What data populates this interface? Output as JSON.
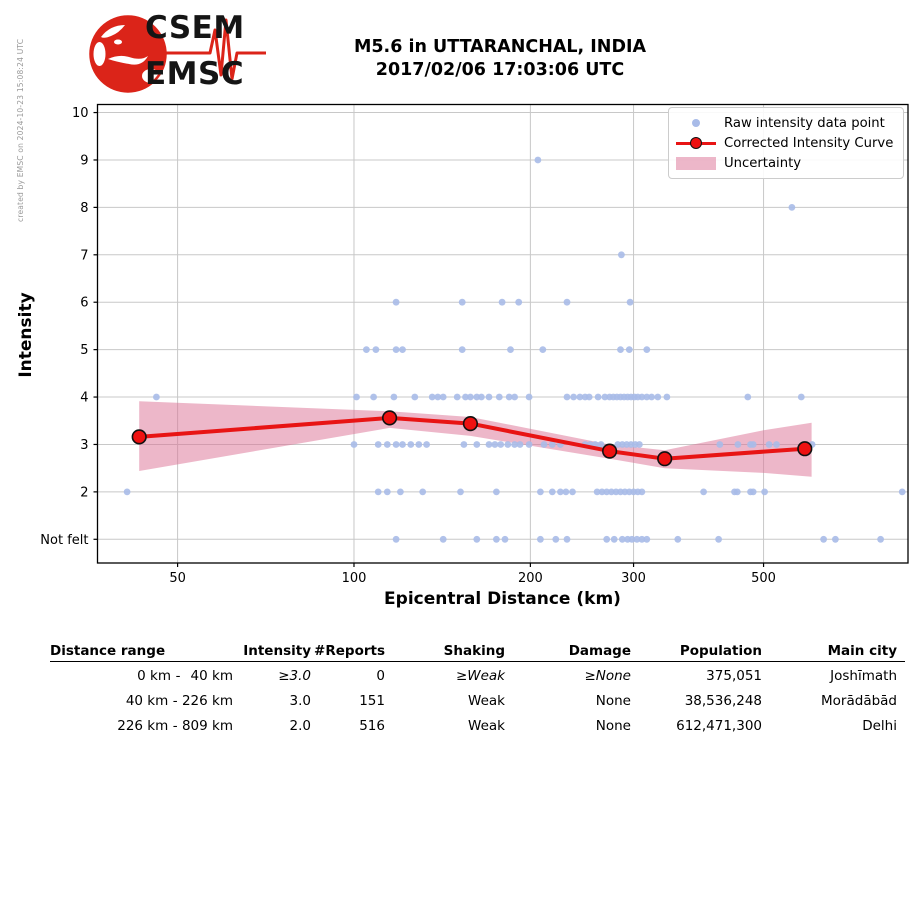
{
  "watermark": "created by EMSC on 2024-10-23 15:08:24 UTC",
  "logo": {
    "top": "CSEM",
    "bottom": "EMSC"
  },
  "title": {
    "line1": "M5.6 in UTTARANCHAL, INDIA",
    "line2": "2017/02/06 17:03:06 UTC"
  },
  "chart_data": {
    "type": "scatter",
    "xlabel": "Epicentral Distance (km)",
    "ylabel": "Intensity",
    "x_scale": "log",
    "x_range": [
      36.5,
      882
    ],
    "x_ticks": [
      50,
      100,
      200,
      300,
      500
    ],
    "y_range": [
      0.5,
      10.17
    ],
    "y_ticks": [
      {
        "value": 1,
        "label": "Not felt"
      },
      {
        "value": 2,
        "label": "2"
      },
      {
        "value": 3,
        "label": "3"
      },
      {
        "value": 4,
        "label": "4"
      },
      {
        "value": 5,
        "label": "5"
      },
      {
        "value": 6,
        "label": "6"
      },
      {
        "value": 7,
        "label": "7"
      },
      {
        "value": 8,
        "label": "8"
      },
      {
        "value": 9,
        "label": "9"
      },
      {
        "value": 10,
        "label": "10"
      }
    ],
    "grid": true,
    "legend": [
      "Raw intensity data point",
      "Corrected Intensity Curve",
      "Uncertainty"
    ],
    "colors": {
      "raw": "#a8bbe8",
      "curve": "#e81414",
      "curve_marker": "#ee1111",
      "marker_edge": "#111111",
      "band": "rgba(219,112,147,0.5)",
      "grid": "#c8c8c8",
      "axis": "#000000"
    },
    "raw_points": [
      [
        206,
        9
      ],
      [
        559,
        8
      ],
      [
        286,
        7
      ],
      [
        118,
        6
      ],
      [
        153,
        6
      ],
      [
        179,
        6
      ],
      [
        191,
        6
      ],
      [
        231,
        6
      ],
      [
        296,
        6
      ],
      [
        105,
        5
      ],
      [
        109,
        5
      ],
      [
        118,
        5
      ],
      [
        121,
        5
      ],
      [
        153,
        5
      ],
      [
        185,
        5
      ],
      [
        210,
        5
      ],
      [
        285,
        5
      ],
      [
        295,
        5
      ],
      [
        316,
        5
      ],
      [
        46,
        4
      ],
      [
        101,
        4
      ],
      [
        108,
        4
      ],
      [
        117,
        4
      ],
      [
        127,
        4
      ],
      [
        136,
        4
      ],
      [
        139,
        4
      ],
      [
        142,
        4
      ],
      [
        150,
        4
      ],
      [
        155,
        4
      ],
      [
        158,
        4
      ],
      [
        162,
        4
      ],
      [
        165,
        4
      ],
      [
        170,
        4
      ],
      [
        177,
        4
      ],
      [
        184,
        4
      ],
      [
        188,
        4
      ],
      [
        199,
        4
      ],
      [
        231,
        4
      ],
      [
        237,
        4
      ],
      [
        243,
        4
      ],
      [
        248,
        4
      ],
      [
        252,
        4
      ],
      [
        261,
        4
      ],
      [
        268,
        4
      ],
      [
        273,
        4
      ],
      [
        277,
        4
      ],
      [
        281,
        4
      ],
      [
        285,
        4
      ],
      [
        289,
        4
      ],
      [
        293,
        4
      ],
      [
        297,
        4
      ],
      [
        301,
        4
      ],
      [
        305,
        4
      ],
      [
        310,
        4
      ],
      [
        316,
        4
      ],
      [
        322,
        4
      ],
      [
        330,
        4
      ],
      [
        342,
        4
      ],
      [
        470,
        4
      ],
      [
        580,
        4
      ],
      [
        100,
        3
      ],
      [
        110,
        3
      ],
      [
        114,
        3
      ],
      [
        118,
        3
      ],
      [
        121,
        3
      ],
      [
        125,
        3
      ],
      [
        129,
        3
      ],
      [
        133,
        3
      ],
      [
        154,
        3
      ],
      [
        162,
        3
      ],
      [
        170,
        3
      ],
      [
        174,
        3
      ],
      [
        178,
        3
      ],
      [
        183,
        3
      ],
      [
        188,
        3
      ],
      [
        192,
        3
      ],
      [
        199,
        3
      ],
      [
        211,
        3
      ],
      [
        218,
        3
      ],
      [
        225,
        3
      ],
      [
        248,
        3
      ],
      [
        253,
        3
      ],
      [
        258,
        3
      ],
      [
        264,
        3
      ],
      [
        282,
        3
      ],
      [
        287,
        3
      ],
      [
        292,
        3
      ],
      [
        297,
        3
      ],
      [
        302,
        3
      ],
      [
        307,
        3
      ],
      [
        421,
        3
      ],
      [
        452,
        3
      ],
      [
        475,
        3
      ],
      [
        480,
        3
      ],
      [
        511,
        3
      ],
      [
        526,
        3
      ],
      [
        605,
        3
      ],
      [
        41,
        2
      ],
      [
        110,
        2
      ],
      [
        114,
        2
      ],
      [
        120,
        2
      ],
      [
        131,
        2
      ],
      [
        152,
        2
      ],
      [
        175,
        2
      ],
      [
        208,
        2
      ],
      [
        218,
        2
      ],
      [
        225,
        2
      ],
      [
        230,
        2
      ],
      [
        236,
        2
      ],
      [
        260,
        2
      ],
      [
        265,
        2
      ],
      [
        270,
        2
      ],
      [
        275,
        2
      ],
      [
        280,
        2
      ],
      [
        285,
        2
      ],
      [
        290,
        2
      ],
      [
        295,
        2
      ],
      [
        300,
        2
      ],
      [
        305,
        2
      ],
      [
        310,
        2
      ],
      [
        395,
        2
      ],
      [
        446,
        2
      ],
      [
        451,
        2
      ],
      [
        475,
        2
      ],
      [
        480,
        2
      ],
      [
        502,
        2
      ],
      [
        862,
        2
      ],
      [
        118,
        1
      ],
      [
        142,
        1
      ],
      [
        162,
        1
      ],
      [
        175,
        1
      ],
      [
        181,
        1
      ],
      [
        208,
        1
      ],
      [
        221,
        1
      ],
      [
        231,
        1
      ],
      [
        270,
        1
      ],
      [
        278,
        1
      ],
      [
        287,
        1
      ],
      [
        293,
        1
      ],
      [
        298,
        1
      ],
      [
        304,
        1
      ],
      [
        310,
        1
      ],
      [
        316,
        1
      ],
      [
        357,
        1
      ],
      [
        419,
        1
      ],
      [
        633,
        1
      ],
      [
        663,
        1
      ],
      [
        792,
        1
      ]
    ],
    "corrected_curve": [
      [
        43,
        3.16
      ],
      [
        115,
        3.56
      ],
      [
        158,
        3.44
      ],
      [
        273,
        2.86
      ],
      [
        339,
        2.7
      ],
      [
        588,
        2.91
      ]
    ],
    "uncertainty_band": [
      [
        43,
        2.44,
        3.91
      ],
      [
        115,
        3.35,
        3.7
      ],
      [
        158,
        3.18,
        3.58
      ],
      [
        273,
        2.7,
        3.0
      ],
      [
        339,
        2.5,
        2.88
      ],
      [
        500,
        2.4,
        3.3
      ],
      [
        604,
        2.32,
        3.46
      ]
    ]
  },
  "table": {
    "headers": [
      "Distance range",
      "Intensity",
      "#Reports",
      "Shaking",
      "Damage",
      "Population",
      "Main city"
    ],
    "separator": "-",
    "rows": [
      {
        "from": "0 km",
        "to": "40 km",
        "intensity": "≥3.0",
        "reports": "0",
        "shaking": "≥Weak",
        "damage": "≥None",
        "population": "375,051",
        "city": "Joshīmath"
      },
      {
        "from": "40 km",
        "to": "226 km",
        "intensity": "3.0",
        "reports": "151",
        "shaking": "Weak",
        "damage": "None",
        "population": "38,536,248",
        "city": "Morādābād"
      },
      {
        "from": "226 km",
        "to": "809 km",
        "intensity": "2.0",
        "reports": "516",
        "shaking": "Weak",
        "damage": "None",
        "population": "612,471,300",
        "city": "Delhi"
      }
    ]
  }
}
